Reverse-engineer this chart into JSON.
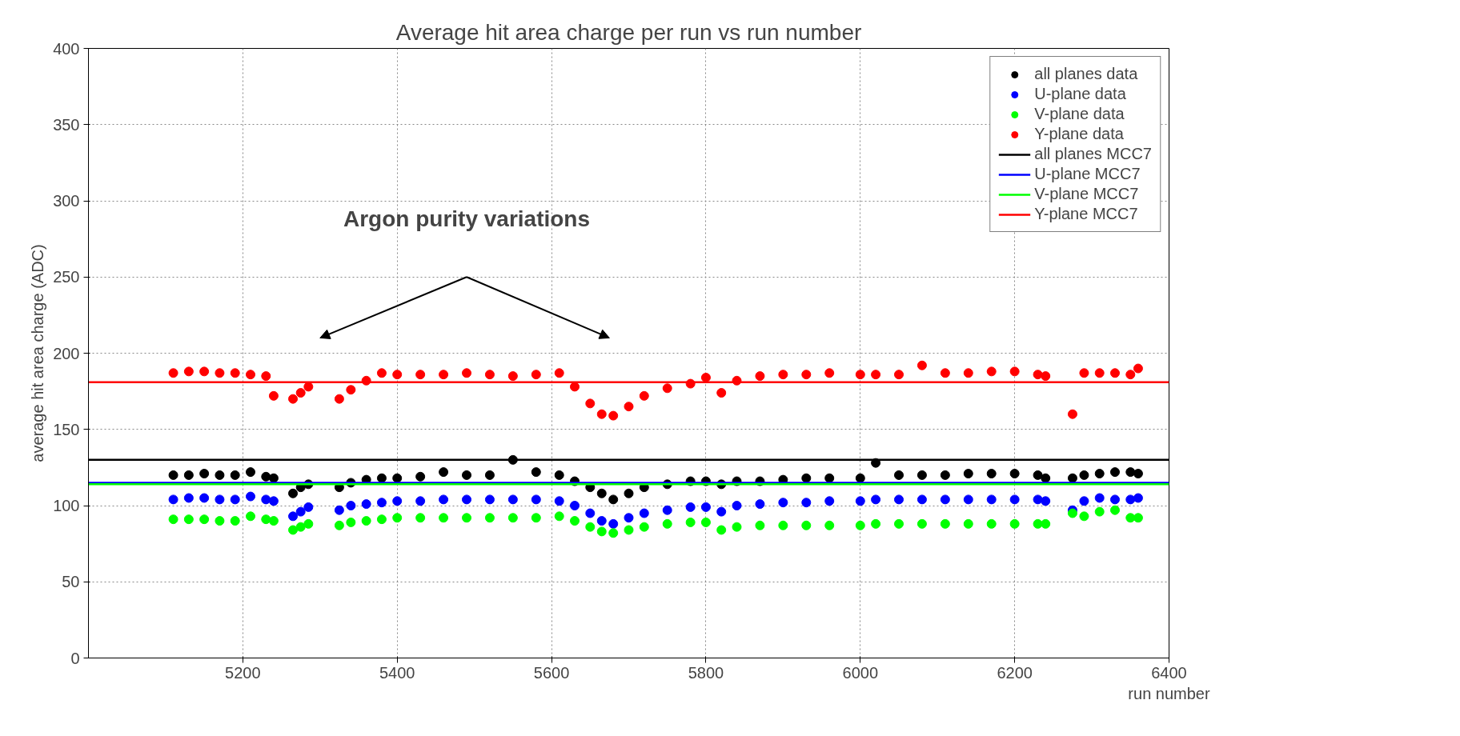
{
  "chart_data": {
    "type": "scatter",
    "title": "Average hit area charge per run vs run number",
    "xlabel": "run number",
    "ylabel": "average hit area charge (ADC)",
    "xlim": [
      5000,
      6400
    ],
    "xticks": [
      5200,
      5400,
      5600,
      5800,
      6000,
      6200,
      6400
    ],
    "ylim": [
      0,
      400
    ],
    "yticks": [
      0,
      50,
      100,
      150,
      200,
      250,
      300,
      350,
      400
    ],
    "grid": true,
    "legend": "top right",
    "annotations": [
      "Argon purity variations"
    ],
    "x": [
      5110,
      5130,
      5150,
      5170,
      5190,
      5210,
      5230,
      5240,
      5265,
      5275,
      5285,
      5325,
      5340,
      5360,
      5380,
      5400,
      5430,
      5460,
      5490,
      5520,
      5550,
      5580,
      5610,
      5630,
      5650,
      5665,
      5680,
      5700,
      5720,
      5750,
      5780,
      5800,
      5820,
      5840,
      5870,
      5900,
      5930,
      5960,
      6000,
      6020,
      6050,
      6080,
      6110,
      6140,
      6170,
      6200,
      6230,
      6240,
      6275,
      6290,
      6310,
      6330,
      6350,
      6360
    ],
    "series": [
      {
        "name": "all planes data",
        "marker": "circle",
        "color": "#000000",
        "values": [
          120,
          120,
          121,
          120,
          120,
          122,
          119,
          118,
          108,
          112,
          114,
          112,
          115,
          117,
          118,
          118,
          119,
          122,
          120,
          120,
          130,
          122,
          120,
          116,
          112,
          108,
          104,
          108,
          112,
          114,
          116,
          116,
          114,
          116,
          116,
          117,
          118,
          118,
          118,
          128,
          120,
          120,
          120,
          121,
          121,
          121,
          120,
          118,
          118,
          120,
          121,
          122,
          122,
          121
        ]
      },
      {
        "name": "U-plane data",
        "marker": "circle",
        "color": "#0000ff",
        "values": [
          104,
          105,
          105,
          104,
          104,
          106,
          104,
          103,
          93,
          96,
          99,
          97,
          100,
          101,
          102,
          103,
          103,
          104,
          104,
          104,
          104,
          104,
          103,
          100,
          95,
          90,
          88,
          92,
          95,
          97,
          99,
          99,
          96,
          100,
          101,
          102,
          102,
          103,
          103,
          104,
          104,
          104,
          104,
          104,
          104,
          104,
          104,
          103,
          97,
          103,
          105,
          104,
          104,
          105
        ]
      },
      {
        "name": "V-plane data",
        "marker": "circle",
        "color": "#00ff00",
        "values": [
          91,
          91,
          91,
          90,
          90,
          93,
          91,
          90,
          84,
          86,
          88,
          87,
          89,
          90,
          91,
          92,
          92,
          92,
          92,
          92,
          92,
          92,
          93,
          90,
          86,
          83,
          82,
          84,
          86,
          88,
          89,
          89,
          84,
          86,
          87,
          87,
          87,
          87,
          87,
          88,
          88,
          88,
          88,
          88,
          88,
          88,
          88,
          88,
          95,
          93,
          96,
          97,
          92,
          92
        ]
      },
      {
        "name": "Y-plane data",
        "marker": "circle",
        "color": "#ff0000",
        "values": [
          187,
          188,
          188,
          187,
          187,
          186,
          185,
          172,
          170,
          174,
          178,
          170,
          176,
          182,
          187,
          186,
          186,
          186,
          187,
          186,
          185,
          186,
          187,
          178,
          167,
          160,
          159,
          165,
          172,
          177,
          180,
          184,
          174,
          182,
          185,
          186,
          186,
          187,
          186,
          186,
          186,
          192,
          187,
          187,
          188,
          188,
          186,
          185,
          160,
          187,
          187,
          187,
          186,
          190
        ]
      }
    ],
    "ref_lines": [
      {
        "axis": "y",
        "value": 130,
        "label": "all planes MCC7",
        "color": "#000000"
      },
      {
        "axis": "y",
        "value": 115,
        "label": "U-plane MCC7",
        "color": "#0000ff"
      },
      {
        "axis": "y",
        "value": 114,
        "label": "V-plane MCC7",
        "color": "#00ff00"
      },
      {
        "axis": "y",
        "value": 181,
        "label": "Y-plane MCC7",
        "color": "#ff0000"
      }
    ]
  }
}
